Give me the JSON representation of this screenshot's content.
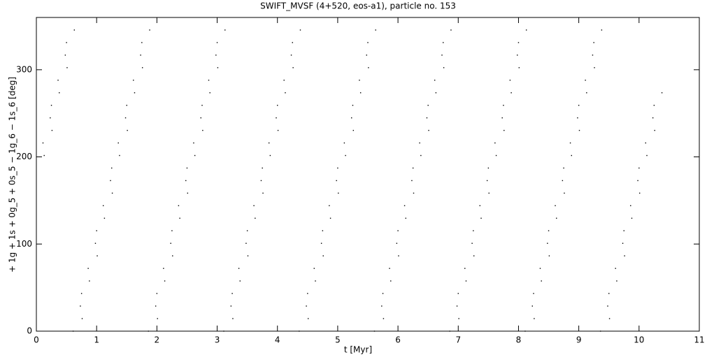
{
  "chart_data": {
    "type": "scatter",
    "title": "SWIFT_MVSF (4+520, eos-a1), particle no. 153",
    "x_label": "t [Myr]",
    "y_label": "+ 1g + 1s + 0g_5 + 0s_5 − 1g_6 − 1s_6 [deg]",
    "color": "#000000",
    "xlim": [
      0,
      11
    ],
    "xticks": [
      0,
      1,
      2,
      3,
      4,
      5,
      6,
      7,
      8,
      9,
      10,
      11
    ],
    "ylim": [
      0,
      360
    ],
    "yticks": [
      0,
      100,
      200,
      300
    ],
    "x": [
      0.13,
      0.11,
      0.26,
      0.23,
      0.25,
      0.38,
      0.36,
      0.51,
      0.48,
      0.5,
      0.63,
      0.61,
      0.76,
      0.73,
      0.75,
      0.88,
      0.86,
      1.01,
      0.98,
      1.0,
      1.13,
      1.11,
      1.26,
      1.23,
      1.25,
      1.38,
      1.36,
      1.51,
      1.48,
      1.5,
      1.63,
      1.61,
      1.76,
      1.73,
      1.75,
      1.88,
      1.86,
      2.01,
      1.98,
      2.0,
      2.13,
      2.11,
      2.26,
      2.23,
      2.25,
      2.38,
      2.36,
      2.51,
      2.48,
      2.5,
      2.63,
      2.61,
      2.76,
      2.73,
      2.75,
      2.88,
      2.86,
      3.01,
      2.98,
      3.0,
      3.13,
      3.11,
      3.26,
      3.23,
      3.25,
      3.38,
      3.36,
      3.51,
      3.48,
      3.5,
      3.63,
      3.61,
      3.76,
      3.73,
      3.75,
      3.88,
      3.86,
      4.01,
      3.98,
      4.0,
      4.13,
      4.11,
      4.26,
      4.23,
      4.25,
      4.38,
      4.36,
      4.51,
      4.48,
      4.5,
      4.63,
      4.61,
      4.76,
      4.73,
      4.75,
      4.88,
      4.86,
      5.01,
      4.98,
      5.0,
      5.13,
      5.11,
      5.26,
      5.23,
      5.25,
      5.38,
      5.36,
      5.51,
      5.48,
      5.5,
      5.63,
      5.61,
      5.76,
      5.73,
      5.75,
      5.88,
      5.86,
      6.01,
      5.98,
      6.0,
      6.13,
      6.11,
      6.26,
      6.23,
      6.25,
      6.38,
      6.36,
      6.51,
      6.48,
      6.5,
      6.63,
      6.61,
      6.76,
      6.73,
      6.75,
      6.88,
      6.86,
      7.01,
      6.98,
      7.0,
      7.13,
      7.11,
      7.26,
      7.23,
      7.25,
      7.38,
      7.36,
      7.51,
      7.48,
      7.5,
      7.63,
      7.61,
      7.76,
      7.73,
      7.75,
      7.88,
      7.86,
      8.01,
      7.98,
      8.0,
      8.13,
      8.11,
      8.26,
      8.23,
      8.25,
      8.38,
      8.36,
      8.51,
      8.48,
      8.5,
      8.63,
      8.61,
      8.76,
      8.73,
      8.75,
      8.88,
      8.86,
      9.01,
      8.98,
      9.0,
      9.13,
      9.11,
      9.26,
      9.23,
      9.25,
      9.38,
      9.36,
      9.51,
      9.48,
      9.5,
      9.63,
      9.61,
      9.76,
      9.73,
      9.75,
      9.88,
      9.86,
      10.01,
      9.98,
      10.0,
      10.13,
      10.11,
      10.26,
      10.23,
      10.25,
      10.38
    ],
    "values": [
      201.6,
      216,
      230.4,
      244.8,
      259.2,
      273.6,
      288,
      302.4,
      316.8,
      331.2,
      345.6,
      0,
      14.4,
      28.8,
      43.2,
      57.6,
      72,
      86.4,
      100.8,
      115.2,
      129.6,
      144,
      158.4,
      172.8,
      187.2,
      201.6,
      216,
      230.4,
      244.8,
      259.2,
      273.6,
      288,
      302.4,
      316.8,
      331.2,
      345.6,
      0,
      14.4,
      28.8,
      43.2,
      57.6,
      72,
      86.4,
      100.8,
      115.2,
      129.6,
      144,
      158.4,
      172.8,
      187.2,
      201.6,
      216,
      230.4,
      244.8,
      259.2,
      273.6,
      288,
      302.4,
      316.8,
      331.2,
      345.6,
      0,
      14.4,
      28.8,
      43.2,
      57.6,
      72,
      86.4,
      100.8,
      115.2,
      129.6,
      144,
      158.4,
      172.8,
      187.2,
      201.6,
      216,
      230.4,
      244.8,
      259.2,
      273.6,
      288,
      302.4,
      316.8,
      331.2,
      345.6,
      0,
      14.4,
      28.8,
      43.2,
      57.6,
      72,
      86.4,
      100.8,
      115.2,
      129.6,
      144,
      158.4,
      172.8,
      187.2,
      201.6,
      216,
      230.4,
      244.8,
      259.2,
      273.6,
      288,
      302.4,
      316.8,
      331.2,
      345.6,
      0,
      14.4,
      28.8,
      43.2,
      57.6,
      72,
      86.4,
      100.8,
      115.2,
      129.6,
      144,
      158.4,
      172.8,
      187.2,
      201.6,
      216,
      230.4,
      244.8,
      259.2,
      273.6,
      288,
      302.4,
      316.8,
      331.2,
      345.6,
      0,
      14.4,
      28.8,
      43.2,
      57.6,
      72,
      86.4,
      100.8,
      115.2,
      129.6,
      144,
      158.4,
      172.8,
      187.2,
      201.6,
      216,
      230.4,
      244.8,
      259.2,
      273.6,
      288,
      302.4,
      316.8,
      331.2,
      345.6,
      0,
      14.4,
      28.8,
      43.2,
      57.6,
      72,
      86.4,
      100.8,
      115.2,
      129.6,
      144,
      158.4,
      172.8,
      187.2,
      201.6,
      216,
      230.4,
      244.8,
      259.2,
      273.6,
      288,
      302.4,
      316.8,
      331.2,
      345.6,
      0,
      14.4,
      28.8,
      43.2,
      57.6,
      72,
      86.4,
      100.8,
      115.2,
      129.6,
      144,
      158.4,
      172.8,
      187.2,
      201.6,
      216,
      230.4,
      244.8,
      259.2,
      273.6
    ]
  }
}
